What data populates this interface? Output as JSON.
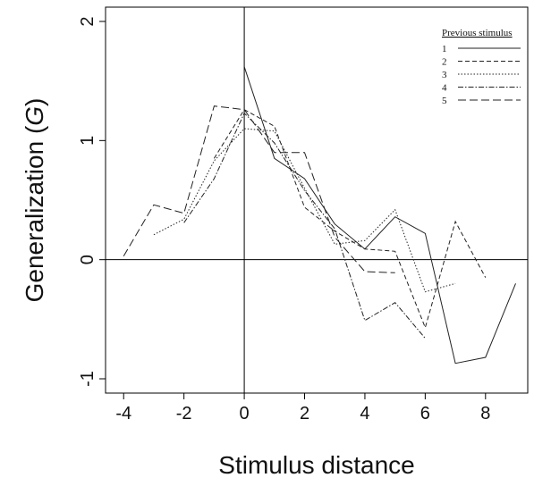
{
  "chart_data": {
    "type": "line",
    "xlabel": "Stimulus distance",
    "ylabel_main": "Generalization (",
    "ylabel_var": "G",
    "ylabel_close": ")",
    "xlim": [
      -4.6,
      9.4
    ],
    "ylim": [
      -1.12,
      2.12
    ],
    "xticks": [
      -4,
      -2,
      0,
      2,
      4,
      6,
      8
    ],
    "yticks": [
      -1,
      0,
      1,
      2
    ],
    "reference_lines": {
      "x": 0,
      "y": 0
    },
    "legend": {
      "title": "Previous stimulus",
      "placement": "top-right"
    },
    "series": [
      {
        "name": "1",
        "dash": "",
        "x": [
          0,
          1,
          2,
          3,
          4,
          5,
          6,
          7,
          8,
          9
        ],
        "y": [
          1.62,
          0.85,
          0.68,
          0.3,
          0.09,
          0.36,
          0.22,
          -0.87,
          -0.82,
          -0.2
        ]
      },
      {
        "name": "2",
        "dash": "5,3",
        "x": [
          -1,
          0,
          1,
          2,
          3,
          4,
          5,
          6,
          7,
          8
        ],
        "y": [
          0.85,
          1.26,
          1.12,
          0.44,
          0.24,
          0.09,
          0.07,
          -0.57,
          0.32,
          -0.15
        ]
      },
      {
        "name": "3",
        "dash": "1.5,2",
        "x": [
          -3,
          -2,
          -1,
          0,
          1,
          2,
          3,
          4,
          5,
          6,
          7
        ],
        "y": [
          0.21,
          0.34,
          0.83,
          1.1,
          1.08,
          0.6,
          0.13,
          0.16,
          0.42,
          -0.27,
          -0.2
        ]
      },
      {
        "name": "4",
        "dash": "6,2,1.5,2",
        "x": [
          -2,
          -1,
          0,
          1,
          2,
          3,
          4,
          5,
          6
        ],
        "y": [
          0.31,
          0.68,
          1.23,
          0.98,
          0.58,
          0.26,
          -0.51,
          -0.36,
          -0.66
        ]
      },
      {
        "name": "5",
        "dash": "9,4",
        "x": [
          -4,
          -3,
          -2,
          -1,
          0,
          1,
          2,
          3,
          4,
          5
        ],
        "y": [
          0.03,
          0.46,
          0.39,
          1.29,
          1.26,
          0.9,
          0.9,
          0.19,
          -0.1,
          -0.11
        ]
      }
    ]
  }
}
